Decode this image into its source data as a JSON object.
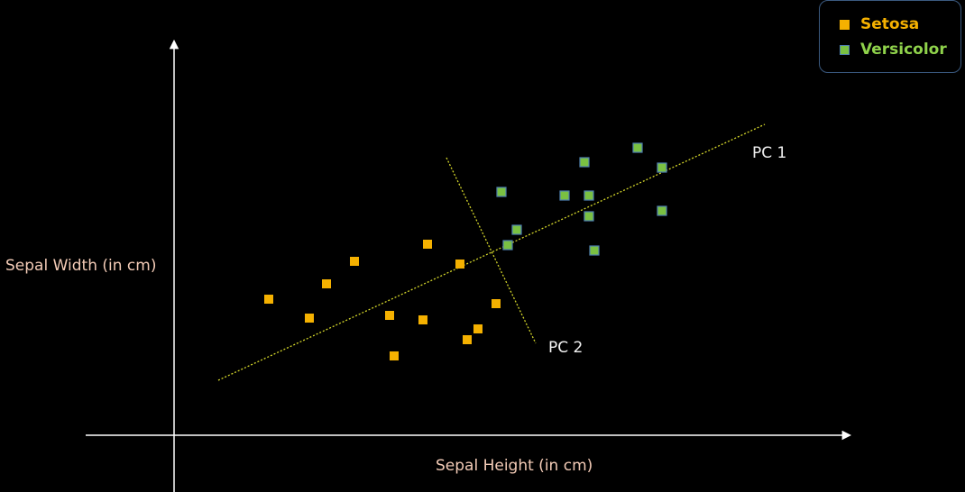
{
  "chart_data": {
    "type": "scatter",
    "title": "",
    "xlabel": "Sepal Height (in cm)",
    "ylabel": "Sepal Width (in cm)",
    "xlim": [
      0,
      750
    ],
    "ylim": [
      0,
      430
    ],
    "grid": false,
    "legend_position": "top-right",
    "series": [
      {
        "name": "Setosa",
        "color": "#f5b100",
        "points": [
          [
            105,
            151
          ],
          [
            150,
            130
          ],
          [
            169,
            168
          ],
          [
            200,
            193
          ],
          [
            239,
            133
          ],
          [
            244,
            88
          ],
          [
            276,
            128
          ],
          [
            281,
            212
          ],
          [
            317,
            190
          ],
          [
            325,
            106
          ],
          [
            337,
            118
          ],
          [
            357,
            146
          ]
        ]
      },
      {
        "name": "Versicolor",
        "color": "#7ac142",
        "points": [
          [
            363,
            270
          ],
          [
            380,
            228
          ],
          [
            370,
            211
          ],
          [
            433,
            266
          ],
          [
            455,
            303
          ],
          [
            460,
            266
          ],
          [
            460,
            243
          ],
          [
            466,
            205
          ],
          [
            514,
            319
          ],
          [
            541,
            297
          ],
          [
            541,
            249
          ]
        ]
      }
    ],
    "components": [
      {
        "name": "PC 1",
        "from": [
          49,
          61
        ],
        "to": [
          655,
          345
        ]
      },
      {
        "name": "PC 2",
        "from": [
          302,
          308
        ],
        "to": [
          401,
          102
        ]
      }
    ],
    "annotations": [
      "PC 1",
      "PC 2"
    ]
  }
}
